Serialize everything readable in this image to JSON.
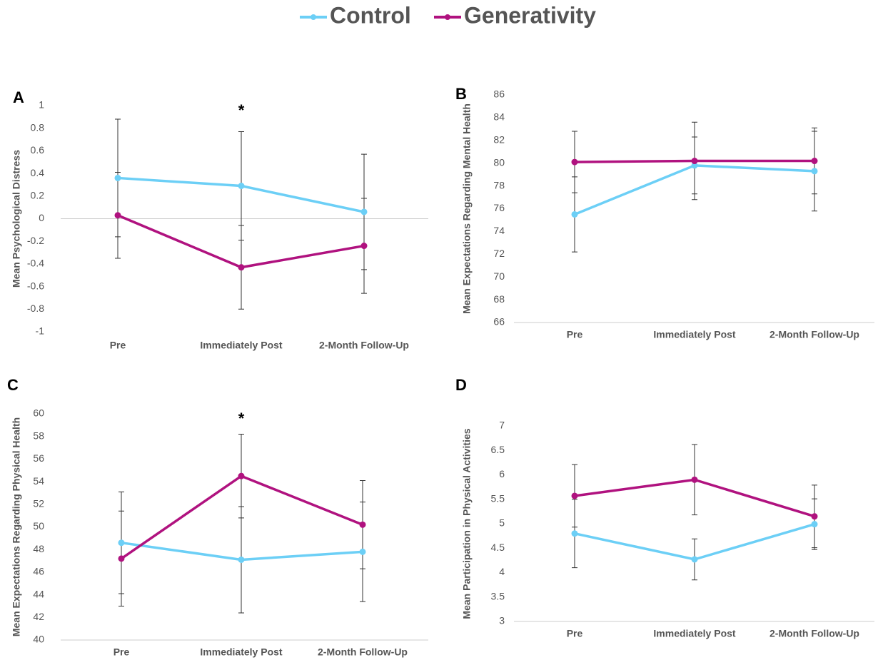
{
  "chart_data": [
    {
      "type": "line",
      "label": "A",
      "ylabel": "Mean Psychological Distress",
      "categories": [
        "Pre",
        "Immediately Post",
        "2-Month Follow-Up"
      ],
      "series": [
        {
          "name": "Control",
          "color": "#6ccff6",
          "values": [
            0.36,
            0.29,
            0.06
          ],
          "errors": [
            0.52,
            0.48,
            0.51
          ]
        },
        {
          "name": "Generativity",
          "color": "#b0127f",
          "values": [
            0.03,
            -0.43,
            -0.24
          ],
          "errors": [
            0.38,
            0.37,
            0.42
          ]
        }
      ],
      "ylim": [
        -1,
        1
      ],
      "yticks": [
        -1,
        -0.8,
        -0.6,
        -0.4,
        -0.2,
        0,
        0.2,
        0.4,
        0.6,
        0.8,
        1
      ],
      "annotations": [
        {
          "text": "*",
          "x": "Immediately Post"
        }
      ]
    },
    {
      "type": "line",
      "label": "B",
      "ylabel": "Mean Expectations Regarding Mental Health",
      "categories": [
        "Pre",
        "Immediately Post",
        "2-Month Follow-Up"
      ],
      "series": [
        {
          "name": "Control",
          "color": "#6ccff6",
          "values": [
            75.5,
            79.8,
            79.3
          ],
          "errors": [
            3.3,
            2.5,
            3.5
          ]
        },
        {
          "name": "Generativity",
          "color": "#b0127f",
          "values": [
            80.1,
            80.2,
            80.2
          ],
          "errors": [
            2.7,
            3.4,
            2.9
          ]
        }
      ],
      "ylim": [
        66,
        86
      ],
      "yticks": [
        66,
        68,
        70,
        72,
        74,
        76,
        78,
        80,
        82,
        84,
        86
      ]
    },
    {
      "type": "line",
      "label": "C",
      "ylabel": "Mean Expectations Regarding Physical Health",
      "categories": [
        "Pre",
        "Immediately Post",
        "2-Month Follow-Up"
      ],
      "series": [
        {
          "name": "Control",
          "color": "#6ccff6",
          "values": [
            48.6,
            47.1,
            47.8
          ],
          "errors": [
            4.5,
            4.7,
            4.4
          ]
        },
        {
          "name": "Generativity",
          "color": "#b0127f",
          "values": [
            47.2,
            54.5,
            50.2
          ],
          "errors": [
            4.2,
            3.7,
            3.9
          ]
        }
      ],
      "ylim": [
        40,
        60
      ],
      "yticks": [
        40,
        42,
        44,
        46,
        48,
        50,
        52,
        54,
        56,
        58,
        60
      ],
      "annotations": [
        {
          "text": "*",
          "x": "Immediately Post"
        }
      ]
    },
    {
      "type": "line",
      "label": "D",
      "ylabel": "Mean Participation in Physical Activities",
      "categories": [
        "Pre",
        "Immediately Post",
        "2-Month Follow-Up"
      ],
      "series": [
        {
          "name": "Control",
          "color": "#6ccff6",
          "values": [
            4.8,
            4.27,
            4.99
          ],
          "errors": [
            0.7,
            0.42,
            0.52
          ]
        },
        {
          "name": "Generativity",
          "color": "#b0127f",
          "values": [
            5.57,
            5.9,
            5.15
          ],
          "errors": [
            0.64,
            0.72,
            0.64
          ]
        }
      ],
      "ylim": [
        3,
        7
      ],
      "yticks": [
        3,
        3.5,
        4,
        4.5,
        5,
        5.5,
        6,
        6.5,
        7
      ]
    }
  ]
}
